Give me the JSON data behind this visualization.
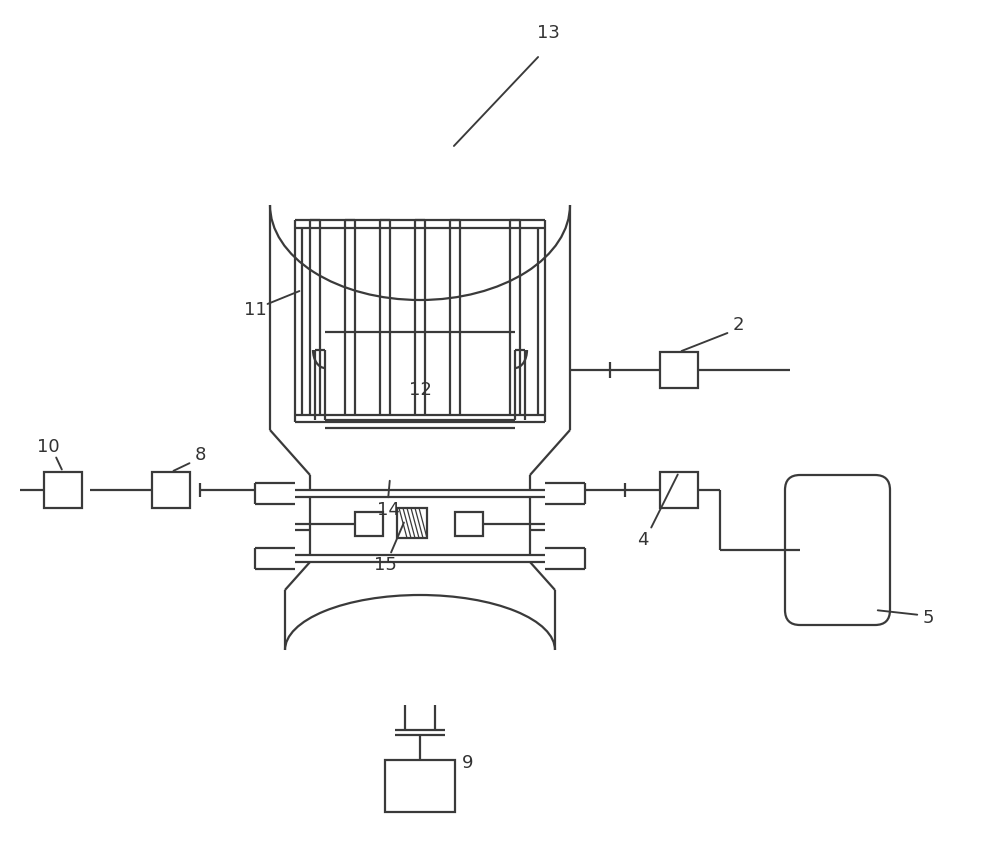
{
  "bg_color": "#ffffff",
  "lc": "#3a3a3a",
  "lw": 1.6,
  "fig_w": 10.0,
  "fig_h": 8.44
}
